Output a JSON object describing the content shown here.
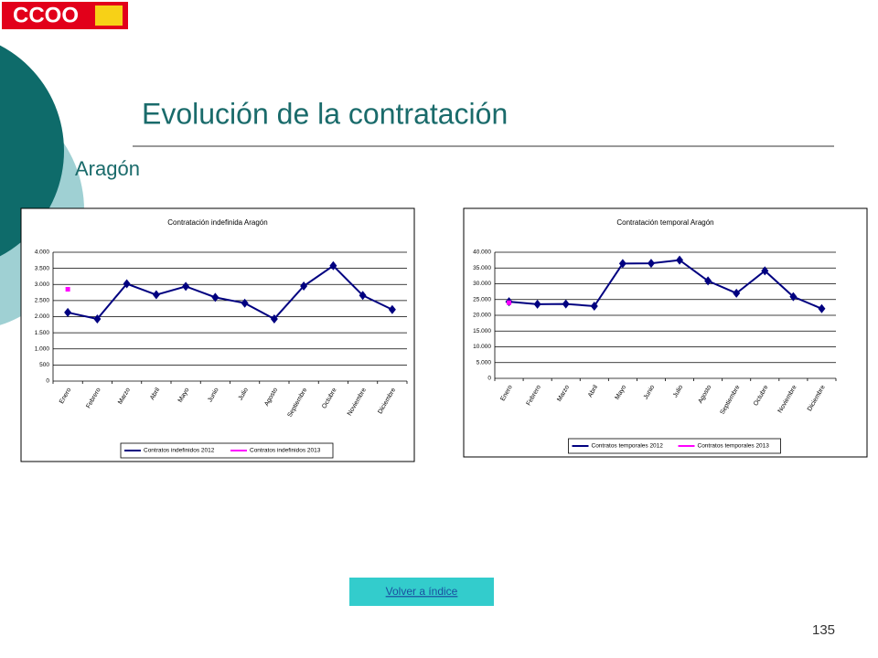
{
  "slide": {
    "logo": "CCOO",
    "title": "Evolución de la contratación",
    "subtitle": "Aragón",
    "link": "Volver a índice",
    "page_number": "135"
  },
  "chart_data": [
    {
      "type": "line",
      "title": "Contratación indefinida Aragón",
      "categories": [
        "Enero",
        "Febrero",
        "Marzo",
        "Abril",
        "Mayo",
        "Junio",
        "Julio",
        "Agosto",
        "Septiembre",
        "Octubre",
        "Noviembre",
        "Diciembre"
      ],
      "series": [
        {
          "name": "Contratos indefinidos 2012",
          "color": "#000080",
          "values": [
            2130,
            1930,
            3020,
            2680,
            2940,
            2600,
            2420,
            1930,
            2950,
            3580,
            2660,
            2220
          ]
        },
        {
          "name": "Contratos indefinidos 2013",
          "color": "#ff00ff",
          "values": [
            2850,
            null,
            null,
            null,
            null,
            null,
            null,
            null,
            null,
            null,
            null,
            null
          ]
        }
      ],
      "ylim": [
        0,
        4000
      ],
      "yticks": [
        0,
        500,
        {
          "value": 1000,
          "label": "1.000"
        },
        {
          "value": 1500,
          "label": "1.500"
        },
        {
          "value": 2000,
          "label": "2.000"
        },
        {
          "value": 2500,
          "label": "2.500"
        },
        {
          "value": 3000,
          "label": "3.000"
        },
        {
          "value": 3500,
          "label": "3.500"
        },
        {
          "value": 4000,
          "label": "4.000"
        }
      ],
      "grid": true,
      "legend": "bottom"
    },
    {
      "type": "line",
      "title": "Contratación temporal Aragón",
      "categories": [
        "Enero",
        "Febrero",
        "Marzo",
        "Abril",
        "Mayo",
        "Junio",
        "Julio",
        "Agosto",
        "Septiembre",
        "Octubre",
        "Noviembre",
        "Diciembre"
      ],
      "series": [
        {
          "name": "Contratos temporales 2012",
          "color": "#000080",
          "values": [
            24300,
            23500,
            23600,
            22900,
            36400,
            36500,
            37500,
            30900,
            27000,
            34100,
            25900,
            22100
          ]
        },
        {
          "name": "Contratos temporales 2013",
          "color": "#ff00ff",
          "values": [
            24000,
            null,
            null,
            null,
            null,
            null,
            null,
            null,
            null,
            null,
            null,
            null
          ]
        }
      ],
      "ylim": [
        0,
        40000
      ],
      "yticks": [
        0,
        {
          "value": 5000,
          "label": "5.000"
        },
        {
          "value": 10000,
          "label": "10.000"
        },
        {
          "value": 15000,
          "label": "15.000"
        },
        {
          "value": 20000,
          "label": "20.000"
        },
        {
          "value": 25000,
          "label": "25.000"
        },
        {
          "value": 30000,
          "label": "30.000"
        },
        {
          "value": 35000,
          "label": "35.000"
        },
        {
          "value": 40000,
          "label": "40.000"
        }
      ],
      "grid": true,
      "legend": "bottom"
    }
  ]
}
